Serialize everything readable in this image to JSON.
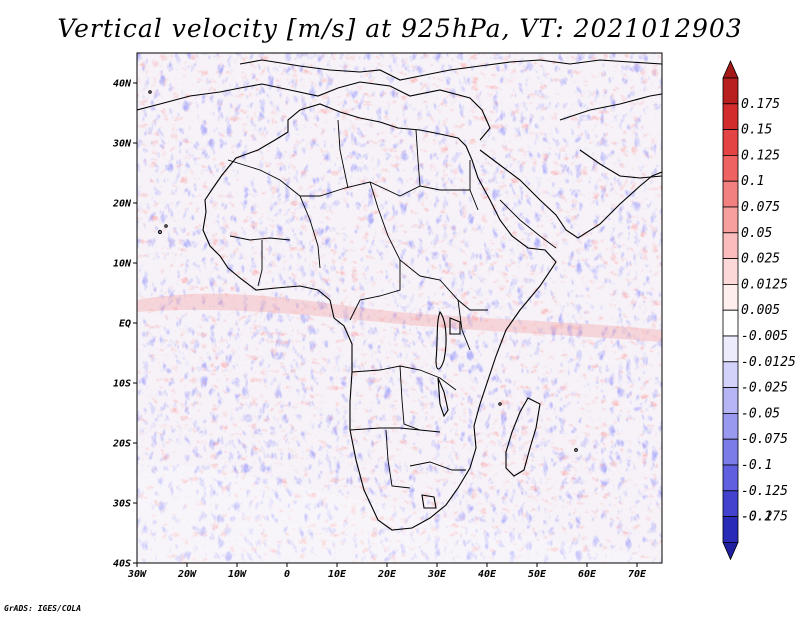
{
  "title": "Vertical velocity [m/s] at 925hPa, VT: 2021012903",
  "footer": "GrADS: IGES/COLA",
  "map": {
    "lat_range": [
      -40,
      45
    ],
    "lon_range": [
      -30,
      75
    ],
    "lat_ticks": [
      {
        "value": 40,
        "label": "40N"
      },
      {
        "value": 30,
        "label": "30N"
      },
      {
        "value": 20,
        "label": "20N"
      },
      {
        "value": 10,
        "label": "10N"
      },
      {
        "value": 0,
        "label": "EQ"
      },
      {
        "value": -10,
        "label": "10S"
      },
      {
        "value": -20,
        "label": "20S"
      },
      {
        "value": -30,
        "label": "30S"
      },
      {
        "value": -40,
        "label": "40S"
      }
    ],
    "lon_ticks": [
      {
        "value": -30,
        "label": "30W"
      },
      {
        "value": -20,
        "label": "20W"
      },
      {
        "value": -10,
        "label": "10W"
      },
      {
        "value": 0,
        "label": "0"
      },
      {
        "value": 10,
        "label": "10E"
      },
      {
        "value": 20,
        "label": "20E"
      },
      {
        "value": 30,
        "label": "30E"
      },
      {
        "value": 40,
        "label": "40E"
      },
      {
        "value": 50,
        "label": "50E"
      },
      {
        "value": 60,
        "label": "60E"
      },
      {
        "value": 70,
        "label": "70E"
      }
    ]
  },
  "colorbar": {
    "levels": [
      {
        "label": "0.175",
        "color": "#b81f1f"
      },
      {
        "label": "0.15",
        "color": "#d22c2c"
      },
      {
        "label": "0.125",
        "color": "#e54444"
      },
      {
        "label": "0.1",
        "color": "#ee6262"
      },
      {
        "label": "0.075",
        "color": "#f38080"
      },
      {
        "label": "0.05",
        "color": "#f79f9f"
      },
      {
        "label": "0.025",
        "color": "#fabcbc"
      },
      {
        "label": "0.0125",
        "color": "#fdd8d8"
      },
      {
        "label": "0.005",
        "color": "#ffeeee"
      },
      {
        "label": "-0.005",
        "color": "#ffffff"
      },
      {
        "label": "-0.0125",
        "color": "#ececfd"
      },
      {
        "label": "-0.025",
        "color": "#d2d2fb"
      },
      {
        "label": "-0.05",
        "color": "#b6b6f6"
      },
      {
        "label": "-0.075",
        "color": "#9999f0"
      },
      {
        "label": "-0.1",
        "color": "#7c7ce8"
      },
      {
        "label": "-0.125",
        "color": "#5f5fdf"
      },
      {
        "label": "-0.175",
        "color": "#4242cf"
      },
      {
        "label": "-0.2",
        "color": "#2a2ab8"
      }
    ],
    "top_color": "#a51818",
    "bottom_color": "#1f1fa0"
  },
  "colors": {
    "background": "#ffffff",
    "coastline": "#000000"
  }
}
